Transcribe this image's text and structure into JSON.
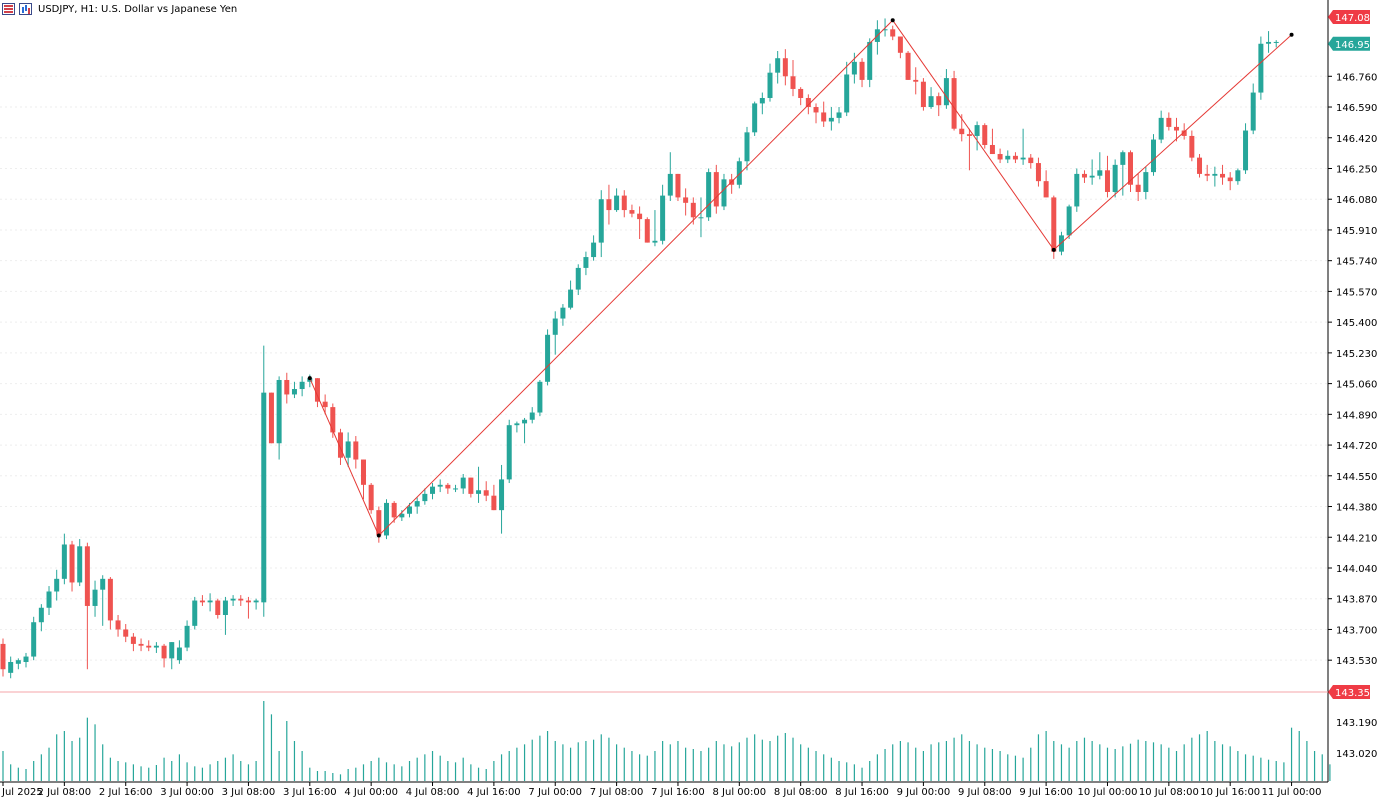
{
  "header": {
    "title": "USDJPY, H1:  U.S. Dollar vs Japanese Yen",
    "icons": [
      "grid-icon",
      "bar-chart-icon"
    ]
  },
  "colors": {
    "bull": "#26a69a",
    "bear": "#ef5350",
    "zigzag": "#e53935",
    "high_tag": "#ef3b45",
    "last_tag": "#26a69a",
    "low_tag": "#ef3b45",
    "grid": "#eeeeee"
  },
  "chart_data": {
    "type": "candlestick",
    "symbol": "USDJPY",
    "timeframe": "H1",
    "ylim": [
      143.354,
      147.088
    ],
    "y_ticks": [
      "145.230",
      "145.060",
      "144.890",
      "144.720",
      "144.550",
      "144.380",
      "144.210",
      "144.040",
      "143.870",
      "143.700",
      "143.530"
    ],
    "y_ticks_upper": [
      "146.760",
      "146.590",
      "146.420",
      "146.250",
      "146.080",
      "145.910",
      "145.740",
      "145.570",
      "145.400"
    ],
    "y_ticks_volume": [
      "143.190",
      "143.020"
    ],
    "x_labels": [
      "Jul 2025",
      "2 Jul 08:00",
      "2 Jul 16:00",
      "3 Jul 00:00",
      "3 Jul 08:00",
      "3 Jul 16:00",
      "4 Jul 00:00",
      "4 Jul 08:00",
      "4 Jul 16:00",
      "7 Jul 00:00",
      "7 Jul 08:00",
      "7 Jul 16:00",
      "8 Jul 00:00",
      "8 Jul 08:00",
      "8 Jul 16:00",
      "9 Jul 00:00",
      "9 Jul 08:00",
      "9 Jul 16:00",
      "10 Jul 00:00",
      "10 Jul 08:00",
      "10 Jul 16:00",
      "11 Jul 00:00"
    ],
    "x_label_candle_index": [
      0,
      8,
      16,
      24,
      32,
      40,
      48,
      56,
      64,
      72,
      80,
      88,
      96,
      104,
      112,
      120,
      128,
      136,
      144,
      152,
      160,
      168
    ],
    "price_tags": {
      "high": "147.088",
      "last": "146.951",
      "low": "143.354"
    },
    "ohlc": [
      [
        143.62,
        143.65,
        143.44,
        143.48
      ],
      [
        143.46,
        143.55,
        143.43,
        143.52
      ],
      [
        143.51,
        143.54,
        143.48,
        143.53
      ],
      [
        143.52,
        143.57,
        143.49,
        143.55
      ],
      [
        143.55,
        143.77,
        143.53,
        143.74
      ],
      [
        143.74,
        143.84,
        143.69,
        143.82
      ],
      [
        143.82,
        143.94,
        143.78,
        143.91
      ],
      [
        143.91,
        144.03,
        143.86,
        143.98
      ],
      [
        143.98,
        144.23,
        143.95,
        144.17
      ],
      [
        144.17,
        144.19,
        143.91,
        143.96
      ],
      [
        143.96,
        144.2,
        143.94,
        144.16
      ],
      [
        144.16,
        144.18,
        143.48,
        143.83
      ],
      [
        143.83,
        143.97,
        143.77,
        143.92
      ],
      [
        143.92,
        144.0,
        143.72,
        143.98
      ],
      [
        143.98,
        143.99,
        143.7,
        143.75
      ],
      [
        143.75,
        143.78,
        143.66,
        143.7
      ],
      [
        143.7,
        143.73,
        143.63,
        143.66
      ],
      [
        143.66,
        143.68,
        143.58,
        143.62
      ],
      [
        143.62,
        143.65,
        143.58,
        143.61
      ],
      [
        143.61,
        143.64,
        143.58,
        143.6
      ],
      [
        143.6,
        143.63,
        143.57,
        143.61
      ],
      [
        143.61,
        143.62,
        143.49,
        143.54
      ],
      [
        143.54,
        143.63,
        143.48,
        143.63
      ],
      [
        143.53,
        143.64,
        143.51,
        143.6
      ],
      [
        143.6,
        143.75,
        143.58,
        143.72
      ],
      [
        143.72,
        143.88,
        143.7,
        143.86
      ],
      [
        143.86,
        143.89,
        143.83,
        143.85
      ],
      [
        143.85,
        143.9,
        143.8,
        143.86
      ],
      [
        143.86,
        143.87,
        143.76,
        143.78
      ],
      [
        143.78,
        143.88,
        143.67,
        143.86
      ],
      [
        143.86,
        143.89,
        143.83,
        143.87
      ],
      [
        143.87,
        143.89,
        143.83,
        143.86
      ],
      [
        143.86,
        143.88,
        143.76,
        143.85
      ],
      [
        143.85,
        143.87,
        143.81,
        143.86
      ],
      [
        143.85,
        145.27,
        143.77,
        145.01
      ],
      [
        145.01,
        145.01,
        144.73,
        144.73
      ],
      [
        144.73,
        145.1,
        144.64,
        145.08
      ],
      [
        145.08,
        145.12,
        144.95,
        145.0
      ],
      [
        145.0,
        145.07,
        144.98,
        145.03
      ],
      [
        145.03,
        145.1,
        144.99,
        145.07
      ],
      [
        145.07,
        145.11,
        145.04,
        145.09
      ],
      [
        145.09,
        145.09,
        144.93,
        144.96
      ],
      [
        144.96,
        145.0,
        144.89,
        144.93
      ],
      [
        144.93,
        144.95,
        144.76,
        144.79
      ],
      [
        144.79,
        144.81,
        144.61,
        144.65
      ],
      [
        144.65,
        144.79,
        144.6,
        144.74
      ],
      [
        144.74,
        144.77,
        144.59,
        144.64
      ],
      [
        144.64,
        144.64,
        144.42,
        144.5
      ],
      [
        144.5,
        144.51,
        144.34,
        144.36
      ],
      [
        144.36,
        144.38,
        144.18,
        144.22
      ],
      [
        144.22,
        144.42,
        144.2,
        144.4
      ],
      [
        144.4,
        144.41,
        144.29,
        144.32
      ],
      [
        144.32,
        144.36,
        144.3,
        144.34
      ],
      [
        144.34,
        144.4,
        144.32,
        144.38
      ],
      [
        144.38,
        144.43,
        144.34,
        144.41
      ],
      [
        144.41,
        144.48,
        144.39,
        144.45
      ],
      [
        144.45,
        144.51,
        144.42,
        144.49
      ],
      [
        144.49,
        144.53,
        144.46,
        144.5
      ],
      [
        144.5,
        144.51,
        144.45,
        144.48
      ],
      [
        144.48,
        144.5,
        144.46,
        144.48
      ],
      [
        144.48,
        144.56,
        144.45,
        144.54
      ],
      [
        144.54,
        144.54,
        144.43,
        144.45
      ],
      [
        144.45,
        144.6,
        144.4,
        144.47
      ],
      [
        144.47,
        144.52,
        144.41,
        144.44
      ],
      [
        144.44,
        144.5,
        144.36,
        144.36
      ],
      [
        144.36,
        144.61,
        144.23,
        144.53
      ],
      [
        144.53,
        144.86,
        144.51,
        144.83
      ],
      [
        144.83,
        144.85,
        144.79,
        144.84
      ],
      [
        144.84,
        144.87,
        144.73,
        144.86
      ],
      [
        144.86,
        144.93,
        144.84,
        144.9
      ],
      [
        144.9,
        145.08,
        144.88,
        145.07
      ],
      [
        145.07,
        145.36,
        145.05,
        145.33
      ],
      [
        145.33,
        145.46,
        145.22,
        145.42
      ],
      [
        145.42,
        145.5,
        145.38,
        145.48
      ],
      [
        145.48,
        145.63,
        145.47,
        145.58
      ],
      [
        145.58,
        145.72,
        145.55,
        145.7
      ],
      [
        145.7,
        145.79,
        145.66,
        145.76
      ],
      [
        145.76,
        145.88,
        145.74,
        145.84
      ],
      [
        145.84,
        146.13,
        145.76,
        146.08
      ],
      [
        146.08,
        146.16,
        145.94,
        146.02
      ],
      [
        146.02,
        146.14,
        146.01,
        146.1
      ],
      [
        146.1,
        146.13,
        145.98,
        146.02
      ],
      [
        146.02,
        146.05,
        145.98,
        146.0
      ],
      [
        146.0,
        146.04,
        145.86,
        145.97
      ],
      [
        145.97,
        145.98,
        145.84,
        145.84
      ],
      [
        145.84,
        146.02,
        145.82,
        145.85
      ],
      [
        145.85,
        146.16,
        145.83,
        146.1
      ],
      [
        146.1,
        146.34,
        146.07,
        146.22
      ],
      [
        146.22,
        146.22,
        146.07,
        146.09
      ],
      [
        146.09,
        146.14,
        145.99,
        146.06
      ],
      [
        146.06,
        146.09,
        145.94,
        145.98
      ],
      [
        145.98,
        146.09,
        145.87,
        145.98
      ],
      [
        145.98,
        146.25,
        145.96,
        146.23
      ],
      [
        146.23,
        146.27,
        146.0,
        146.04
      ],
      [
        146.04,
        146.22,
        146.02,
        146.19
      ],
      [
        146.19,
        146.22,
        146.11,
        146.16
      ],
      [
        146.16,
        146.31,
        146.14,
        146.29
      ],
      [
        146.29,
        146.48,
        146.24,
        146.45
      ],
      [
        146.45,
        146.62,
        146.43,
        146.61
      ],
      [
        146.61,
        146.67,
        146.55,
        146.64
      ],
      [
        146.64,
        146.83,
        146.62,
        146.78
      ],
      [
        146.78,
        146.9,
        146.72,
        146.86
      ],
      [
        146.86,
        146.91,
        146.71,
        146.76
      ],
      [
        146.76,
        146.85,
        146.65,
        146.69
      ],
      [
        146.69,
        146.7,
        146.6,
        146.64
      ],
      [
        146.64,
        146.66,
        146.55,
        146.59
      ],
      [
        146.59,
        146.61,
        146.5,
        146.56
      ],
      [
        146.56,
        146.62,
        146.48,
        146.51
      ],
      [
        146.51,
        146.59,
        146.46,
        146.53
      ],
      [
        146.53,
        146.59,
        146.5,
        146.56
      ],
      [
        146.56,
        146.84,
        146.54,
        146.77
      ],
      [
        146.77,
        146.89,
        146.72,
        146.84
      ],
      [
        146.84,
        146.86,
        146.7,
        146.74
      ],
      [
        146.74,
        146.97,
        146.7,
        146.95
      ],
      [
        146.95,
        147.07,
        146.88,
        147.02
      ],
      [
        147.02,
        147.08,
        146.98,
        147.02
      ],
      [
        147.02,
        147.04,
        146.96,
        146.98
      ],
      [
        146.98,
        146.98,
        146.86,
        146.89
      ],
      [
        146.89,
        146.9,
        146.74,
        146.74
      ],
      [
        146.74,
        146.81,
        146.66,
        146.73
      ],
      [
        146.73,
        146.75,
        146.57,
        146.59
      ],
      [
        146.59,
        146.7,
        146.58,
        146.65
      ],
      [
        146.65,
        146.67,
        146.54,
        146.6
      ],
      [
        146.6,
        146.8,
        146.58,
        146.75
      ],
      [
        146.75,
        146.79,
        146.46,
        146.47
      ],
      [
        146.47,
        146.55,
        146.4,
        146.44
      ],
      [
        146.44,
        146.47,
        146.24,
        146.43
      ],
      [
        146.43,
        146.51,
        146.35,
        146.49
      ],
      [
        146.49,
        146.5,
        146.36,
        146.38
      ],
      [
        146.38,
        146.47,
        146.33,
        146.33
      ],
      [
        146.33,
        146.36,
        146.28,
        146.3
      ],
      [
        146.3,
        146.35,
        146.28,
        146.32
      ],
      [
        146.32,
        146.34,
        146.28,
        146.3
      ],
      [
        146.3,
        146.47,
        146.27,
        146.31
      ],
      [
        146.31,
        146.33,
        146.25,
        146.28
      ],
      [
        146.28,
        146.31,
        146.15,
        146.18
      ],
      [
        146.18,
        146.24,
        146.09,
        146.09
      ],
      [
        146.09,
        146.1,
        145.75,
        145.79
      ],
      [
        145.79,
        145.9,
        145.77,
        145.88
      ],
      [
        145.88,
        146.05,
        145.86,
        146.04
      ],
      [
        146.04,
        146.25,
        146.01,
        146.22
      ],
      [
        146.22,
        146.24,
        146.17,
        146.2
      ],
      [
        146.2,
        146.3,
        146.16,
        146.21
      ],
      [
        146.21,
        146.34,
        146.19,
        146.24
      ],
      [
        146.24,
        146.32,
        146.09,
        146.12
      ],
      [
        146.12,
        146.3,
        146.09,
        146.27
      ],
      [
        146.27,
        146.35,
        146.1,
        146.34
      ],
      [
        146.34,
        146.35,
        146.12,
        146.16
      ],
      [
        146.16,
        146.22,
        146.07,
        146.12
      ],
      [
        146.12,
        146.26,
        146.08,
        146.23
      ],
      [
        146.23,
        146.44,
        146.21,
        146.41
      ],
      [
        146.41,
        146.57,
        146.39,
        146.53
      ],
      [
        146.53,
        146.56,
        146.46,
        146.48
      ],
      [
        146.48,
        146.53,
        146.4,
        146.46
      ],
      [
        146.46,
        146.5,
        146.41,
        146.43
      ],
      [
        146.43,
        146.46,
        146.29,
        146.31
      ],
      [
        146.31,
        146.33,
        146.2,
        146.22
      ],
      [
        146.22,
        146.27,
        146.18,
        146.21
      ],
      [
        146.21,
        146.26,
        146.15,
        146.22
      ],
      [
        146.22,
        146.27,
        146.16,
        146.2
      ],
      [
        146.2,
        146.23,
        146.13,
        146.18
      ],
      [
        146.18,
        146.25,
        146.16,
        146.24
      ],
      [
        146.24,
        146.5,
        146.22,
        146.46
      ],
      [
        146.46,
        146.72,
        146.44,
        146.67
      ],
      [
        146.67,
        146.98,
        146.63,
        146.94
      ],
      [
        146.94,
        147.01,
        146.89,
        146.95
      ],
      [
        146.95,
        146.96,
        146.92,
        146.95
      ]
    ],
    "volume": [
      45,
      25,
      20,
      18,
      30,
      40,
      50,
      70,
      75,
      60,
      65,
      95,
      85,
      55,
      35,
      30,
      28,
      25,
      22,
      20,
      24,
      35,
      30,
      40,
      28,
      22,
      20,
      25,
      30,
      35,
      40,
      30,
      25,
      30,
      120,
      100,
      45,
      90,
      60,
      45,
      20,
      15,
      15,
      12,
      10,
      18,
      20,
      25,
      30,
      35,
      28,
      25,
      22,
      30,
      35,
      40,
      45,
      38,
      30,
      28,
      35,
      25,
      20,
      18,
      30,
      40,
      45,
      50,
      55,
      62,
      68,
      75,
      60,
      55,
      50,
      58,
      60,
      62,
      70,
      65,
      55,
      50,
      45,
      40,
      38,
      45,
      60,
      55,
      60,
      50,
      48,
      45,
      50,
      60,
      55,
      52,
      58,
      65,
      70,
      62,
      60,
      68,
      72,
      65,
      55,
      50,
      45,
      40,
      35,
      30,
      28,
      25,
      20,
      30,
      40,
      48,
      55,
      60,
      58,
      50,
      45,
      55,
      58,
      60,
      65,
      70,
      60,
      55,
      50,
      48,
      45,
      40,
      38,
      35,
      50,
      70,
      75,
      60,
      55,
      50,
      60,
      65,
      60,
      55,
      50,
      48,
      52,
      56,
      62,
      60,
      58,
      55,
      50,
      45,
      55,
      65,
      70,
      75,
      60,
      55,
      52,
      45,
      40,
      38,
      35,
      32,
      30,
      28,
      80,
      75,
      60,
      45,
      40,
      25
    ],
    "zigzag_points": [
      [
        40,
        145.09
      ],
      [
        49,
        144.22
      ],
      [
        116,
        147.07
      ],
      [
        137,
        145.8
      ],
      [
        168,
        146.99
      ]
    ]
  }
}
